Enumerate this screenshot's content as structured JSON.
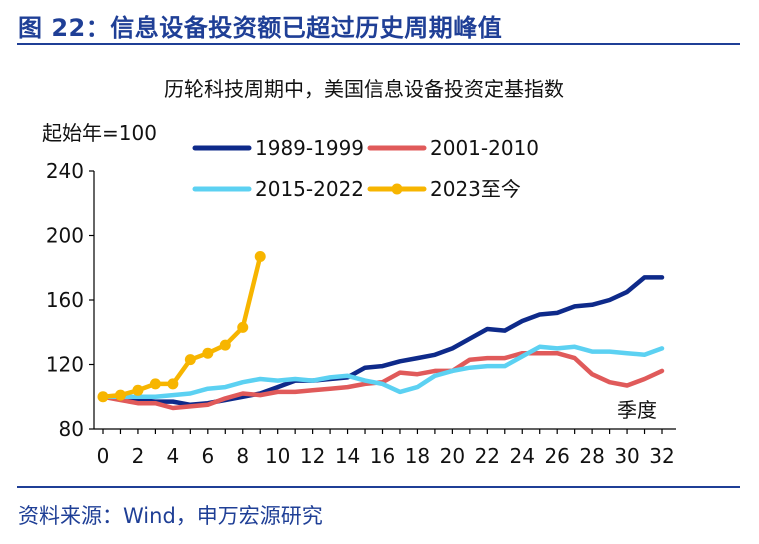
{
  "figure_title": "图 22：信息设备投资额已超过历史周期峰值",
  "source": "资料来源：Wind，申万宏源研究",
  "chart_data": {
    "type": "line",
    "title": "历轮科技周期中，美国信息设备投资定基指数",
    "ylabel": "起始年=100",
    "xlabel": "季度",
    "ylim": [
      80,
      240
    ],
    "xlim": [
      0,
      32
    ],
    "yticks": [
      80,
      120,
      160,
      200,
      240
    ],
    "xticks": [
      0,
      2,
      4,
      6,
      8,
      10,
      12,
      14,
      16,
      18,
      20,
      22,
      24,
      26,
      28,
      30,
      32
    ],
    "grid": false,
    "legend_position": "top",
    "series": [
      {
        "name": "1989-1999",
        "color": "#0e2a8a",
        "marker": false,
        "x": [
          0,
          1,
          2,
          3,
          4,
          5,
          6,
          7,
          8,
          9,
          10,
          11,
          12,
          13,
          14,
          15,
          16,
          17,
          18,
          19,
          20,
          21,
          22,
          23,
          24,
          25,
          26,
          27,
          28,
          29,
          30,
          31,
          32
        ],
        "values": [
          100,
          99,
          98,
          97,
          97,
          95,
          96,
          98,
          100,
          102,
          106,
          110,
          110,
          111,
          112,
          118,
          119,
          122,
          124,
          126,
          130,
          136,
          142,
          141,
          147,
          151,
          152,
          156,
          157,
          160,
          165,
          174,
          174
        ]
      },
      {
        "name": "2001-2010",
        "color": "#e05a5a",
        "marker": false,
        "x": [
          0,
          1,
          2,
          3,
          4,
          5,
          6,
          7,
          8,
          9,
          10,
          11,
          12,
          13,
          14,
          15,
          16,
          17,
          18,
          19,
          20,
          21,
          22,
          23,
          24,
          25,
          26,
          27,
          28,
          29,
          30,
          31,
          32
        ],
        "values": [
          100,
          98,
          96,
          96,
          93,
          94,
          95,
          99,
          102,
          101,
          103,
          103,
          104,
          105,
          106,
          108,
          109,
          115,
          114,
          116,
          116,
          123,
          124,
          124,
          127,
          127,
          127,
          124,
          114,
          109,
          107,
          111,
          116
        ]
      },
      {
        "name": "2015-2022",
        "color": "#5cd1f2",
        "marker": false,
        "x": [
          0,
          1,
          2,
          3,
          4,
          5,
          6,
          7,
          8,
          9,
          10,
          11,
          12,
          13,
          14,
          15,
          16,
          17,
          18,
          19,
          20,
          21,
          22,
          23,
          24,
          25,
          26,
          27,
          28,
          29,
          30,
          31,
          32
        ],
        "values": [
          100,
          100,
          100,
          100,
          101,
          102,
          105,
          106,
          109,
          111,
          110,
          111,
          110,
          112,
          113,
          110,
          108,
          103,
          106,
          113,
          116,
          118,
          119,
          119,
          125,
          131,
          130,
          131,
          128,
          128,
          127,
          126,
          130
        ]
      },
      {
        "name": "2023至今",
        "color": "#f7b500",
        "marker": true,
        "x": [
          0,
          1,
          2,
          3,
          4,
          5,
          6,
          7,
          8,
          9
        ],
        "values": [
          100,
          101,
          104,
          108,
          108,
          123,
          127,
          132,
          143,
          187
        ]
      }
    ]
  }
}
